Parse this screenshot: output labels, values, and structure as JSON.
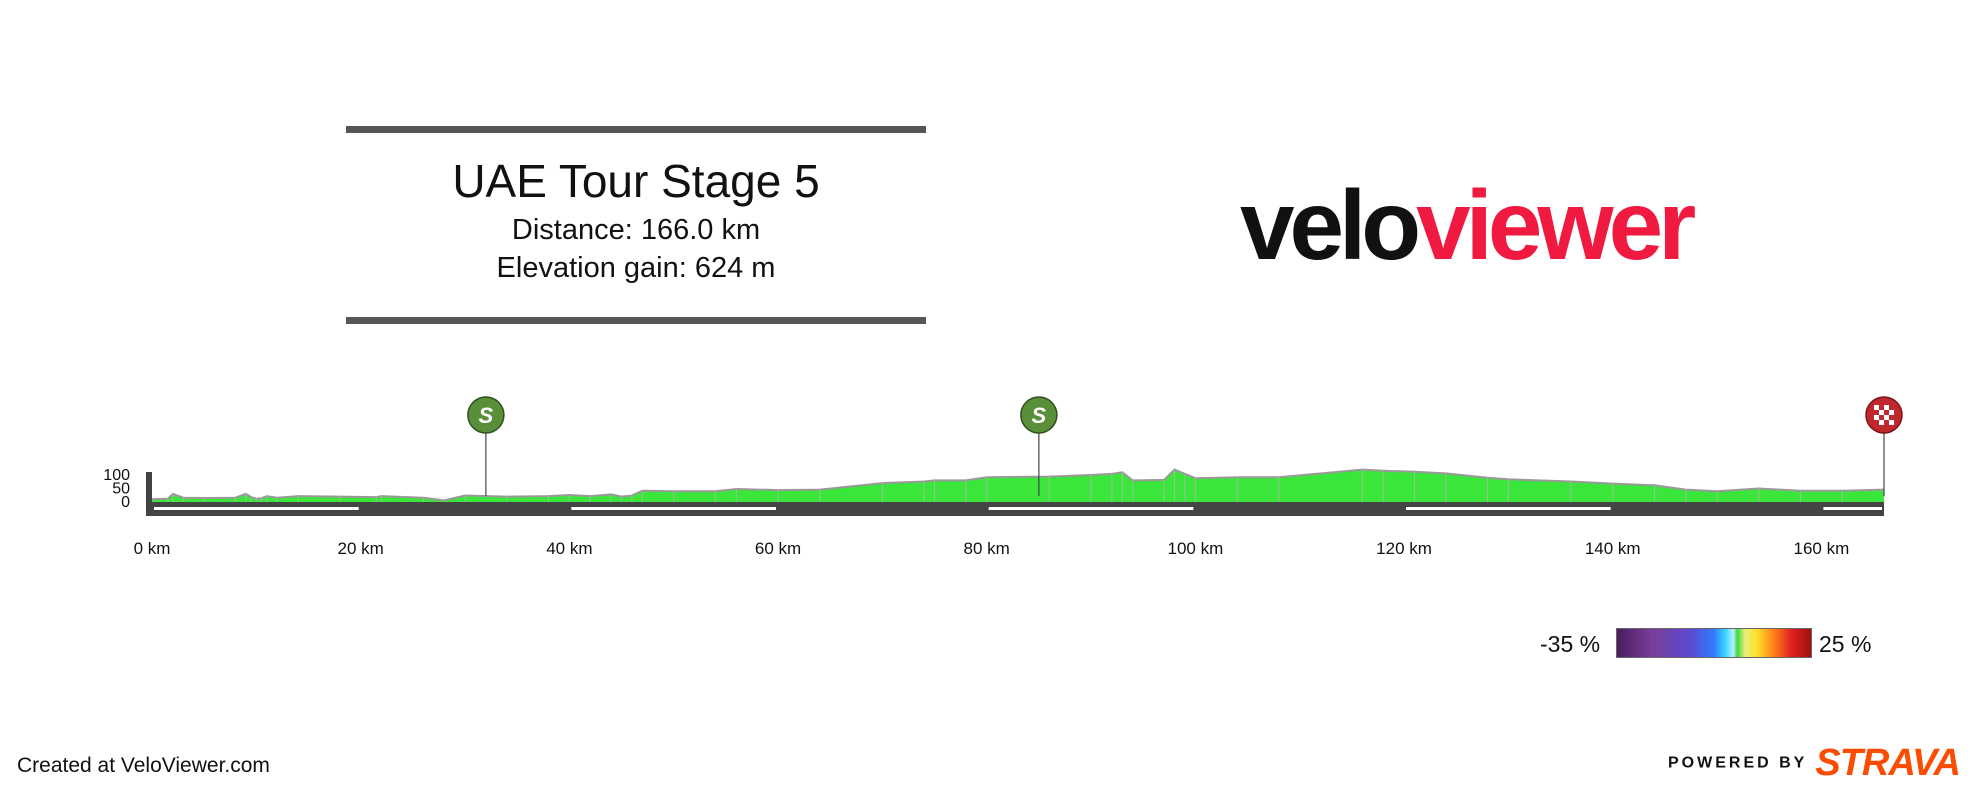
{
  "header": {
    "title": "UAE Tour Stage 5",
    "distance_line": "Distance: 166.0 km",
    "elevation_line": "Elevation gain: 624 m"
  },
  "logo": {
    "part1": "velo",
    "part2": "viewer",
    "color_part1": "#111111",
    "color_part2": "#f0193f"
  },
  "chart_data": {
    "type": "area",
    "xlabel": "",
    "ylabel": "",
    "x_unit": "km",
    "xlim": [
      0,
      166
    ],
    "ylim": [
      0,
      100
    ],
    "x_ticks": [
      0,
      20,
      40,
      60,
      80,
      100,
      120,
      140,
      160
    ],
    "x_tick_labels": [
      "0 km",
      "20 km",
      "40 km",
      "60 km",
      "80 km",
      "100 km",
      "120 km",
      "140 km",
      "160 km"
    ],
    "y_ticks": [
      0,
      50,
      100
    ],
    "y_tick_labels": [
      "0",
      "50",
      "100"
    ],
    "fill_color": "#3be63b",
    "profile": {
      "distance_km": [
        0,
        1.5,
        2,
        3,
        5,
        8,
        9,
        9.5,
        10,
        10.5,
        11,
        12,
        14,
        18,
        21.5,
        22,
        26,
        28,
        30,
        34,
        38,
        40,
        42,
        44,
        45,
        46,
        47,
        50,
        54,
        56,
        60,
        64,
        70,
        74,
        75,
        78,
        80,
        86,
        90,
        92,
        93,
        94,
        97,
        98,
        99,
        100,
        104,
        108,
        116,
        118,
        121,
        124,
        128,
        130,
        136,
        140,
        144,
        147,
        150,
        154,
        158,
        162,
        166
      ],
      "elevation_m": [
        10,
        12,
        30,
        16,
        15,
        16,
        30,
        18,
        12,
        14,
        22,
        16,
        22,
        20,
        18,
        22,
        16,
        6,
        24,
        20,
        22,
        26,
        22,
        28,
        20,
        24,
        42,
        40,
        40,
        48,
        44,
        46,
        70,
        76,
        80,
        80,
        92,
        94,
        100,
        104,
        110,
        80,
        82,
        120,
        104,
        88,
        92,
        92,
        120,
        116,
        112,
        106,
        90,
        84,
        76,
        68,
        62,
        46,
        40,
        50,
        42,
        42,
        46
      ]
    },
    "sprints": [
      {
        "km": 32,
        "label": "S",
        "color": "#5a8f3a"
      },
      {
        "km": 85,
        "label": "S",
        "color": "#5a8f3a"
      }
    ],
    "finish": {
      "km": 166,
      "color": "#c0282d"
    },
    "gradient_legend": {
      "min_label": "-35 %",
      "max_label": "25 %",
      "min": -35,
      "max": 25
    }
  },
  "footer": {
    "credit": "Created at VeloViewer.com",
    "powered_by": "POWERED BY",
    "strava": "STRAVA"
  }
}
